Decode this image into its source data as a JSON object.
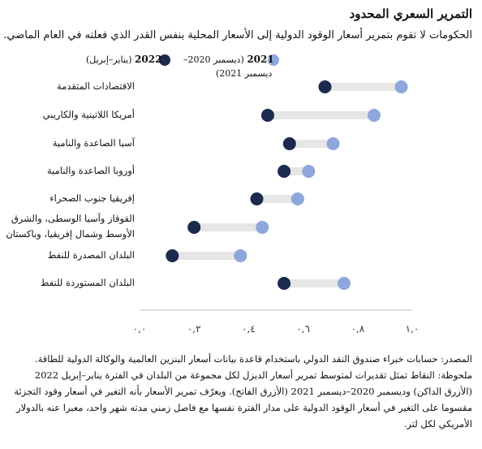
{
  "title": "التمرير السعري المحدود",
  "subtitle": "الحكومات لا تقوم بتمرير أسعار الوقود الدولية إلى الأسعار المحلية بنفس القدر الذي فعلته في العام الماضي.",
  "legend": {
    "dark": {
      "year": "2022",
      "period": "(يناير–إبريل)",
      "color": "#1b2a4e"
    },
    "light": {
      "year": "2021",
      "period": "(ديسمبر 2020–",
      "period2": "ديسمبر 2021)",
      "color": "#8ea6dc"
    }
  },
  "chart_data": {
    "type": "dumbbell",
    "xlim": [
      0,
      1
    ],
    "xticks": [
      "٠,٠",
      "٠,٢",
      "٠,٤",
      "٠,٦",
      "٠,٨",
      "١,٠"
    ],
    "categories": [
      "الاقتصادات المتقدمة",
      "أمريكا اللاتينية والكاريبي",
      "آسيا الصاعدة والنامية",
      "أوروبا الصاعدة والنامية",
      "إفريقيا جنوب الصحراء",
      "القوقاز وآسيا الوسطى، والشرق الأوسط وشمال إفريقيا، وباكستان",
      "البلدان المصدرة للنفط",
      "البلدان المستوردة للنفط"
    ],
    "category_lines": [
      [
        "الاقتصادات المتقدمة"
      ],
      [
        "أمريكا اللاتينية والكاريبي"
      ],
      [
        "آسيا الصاعدة والنامية"
      ],
      [
        "أوروبا الصاعدة والنامية"
      ],
      [
        "إفريقيا جنوب الصحراء"
      ],
      [
        "القوقاز وآسيا الوسطى، والشرق",
        "الأوسط وشمال إفريقيا، وباكستان"
      ],
      [
        "البلدان المصدرة للنفط"
      ],
      [
        "البلدان المستوردة للنفط"
      ]
    ],
    "series": [
      {
        "name": "2022 (يناير–إبريل)",
        "color": "#1b2a4e",
        "values": [
          0.68,
          0.47,
          0.55,
          0.53,
          0.43,
          0.2,
          0.12,
          0.53
        ]
      },
      {
        "name": "2021 (ديسمبر 2020–ديسمبر 2021)",
        "color": "#8ea6dc",
        "values": [
          0.96,
          0.86,
          0.71,
          0.62,
          0.58,
          0.45,
          0.37,
          0.75
        ]
      }
    ]
  },
  "footer": {
    "source": "المصدر: حسابات خبراء صندوق النقد الدولي باستخدام قاعدة بيانات أسعار البنزين العالمية والوكالة الدولية للطاقة.",
    "note": "ملحوظة: النقاط تمثل تقديرات لمتوسط تمرير أسعار الديزل لكل مجموعة من البلدان في الفترة يناير–إبريل 2022 (الأزرق الداكن) وديسمبر 2020–ديسمبر 2021 (الأزرق الفاتح). ويعرّف تمرير الأسعار بأنه التغير في أسعار وقود التجزئة مقسوما على التغير في أسعار الوقود الدولية على مدار الفترة نفسها مع فاصل زمني مدته شهر واحد، معبرا عنه بالدولار الأمريكي لكل لتر."
  }
}
